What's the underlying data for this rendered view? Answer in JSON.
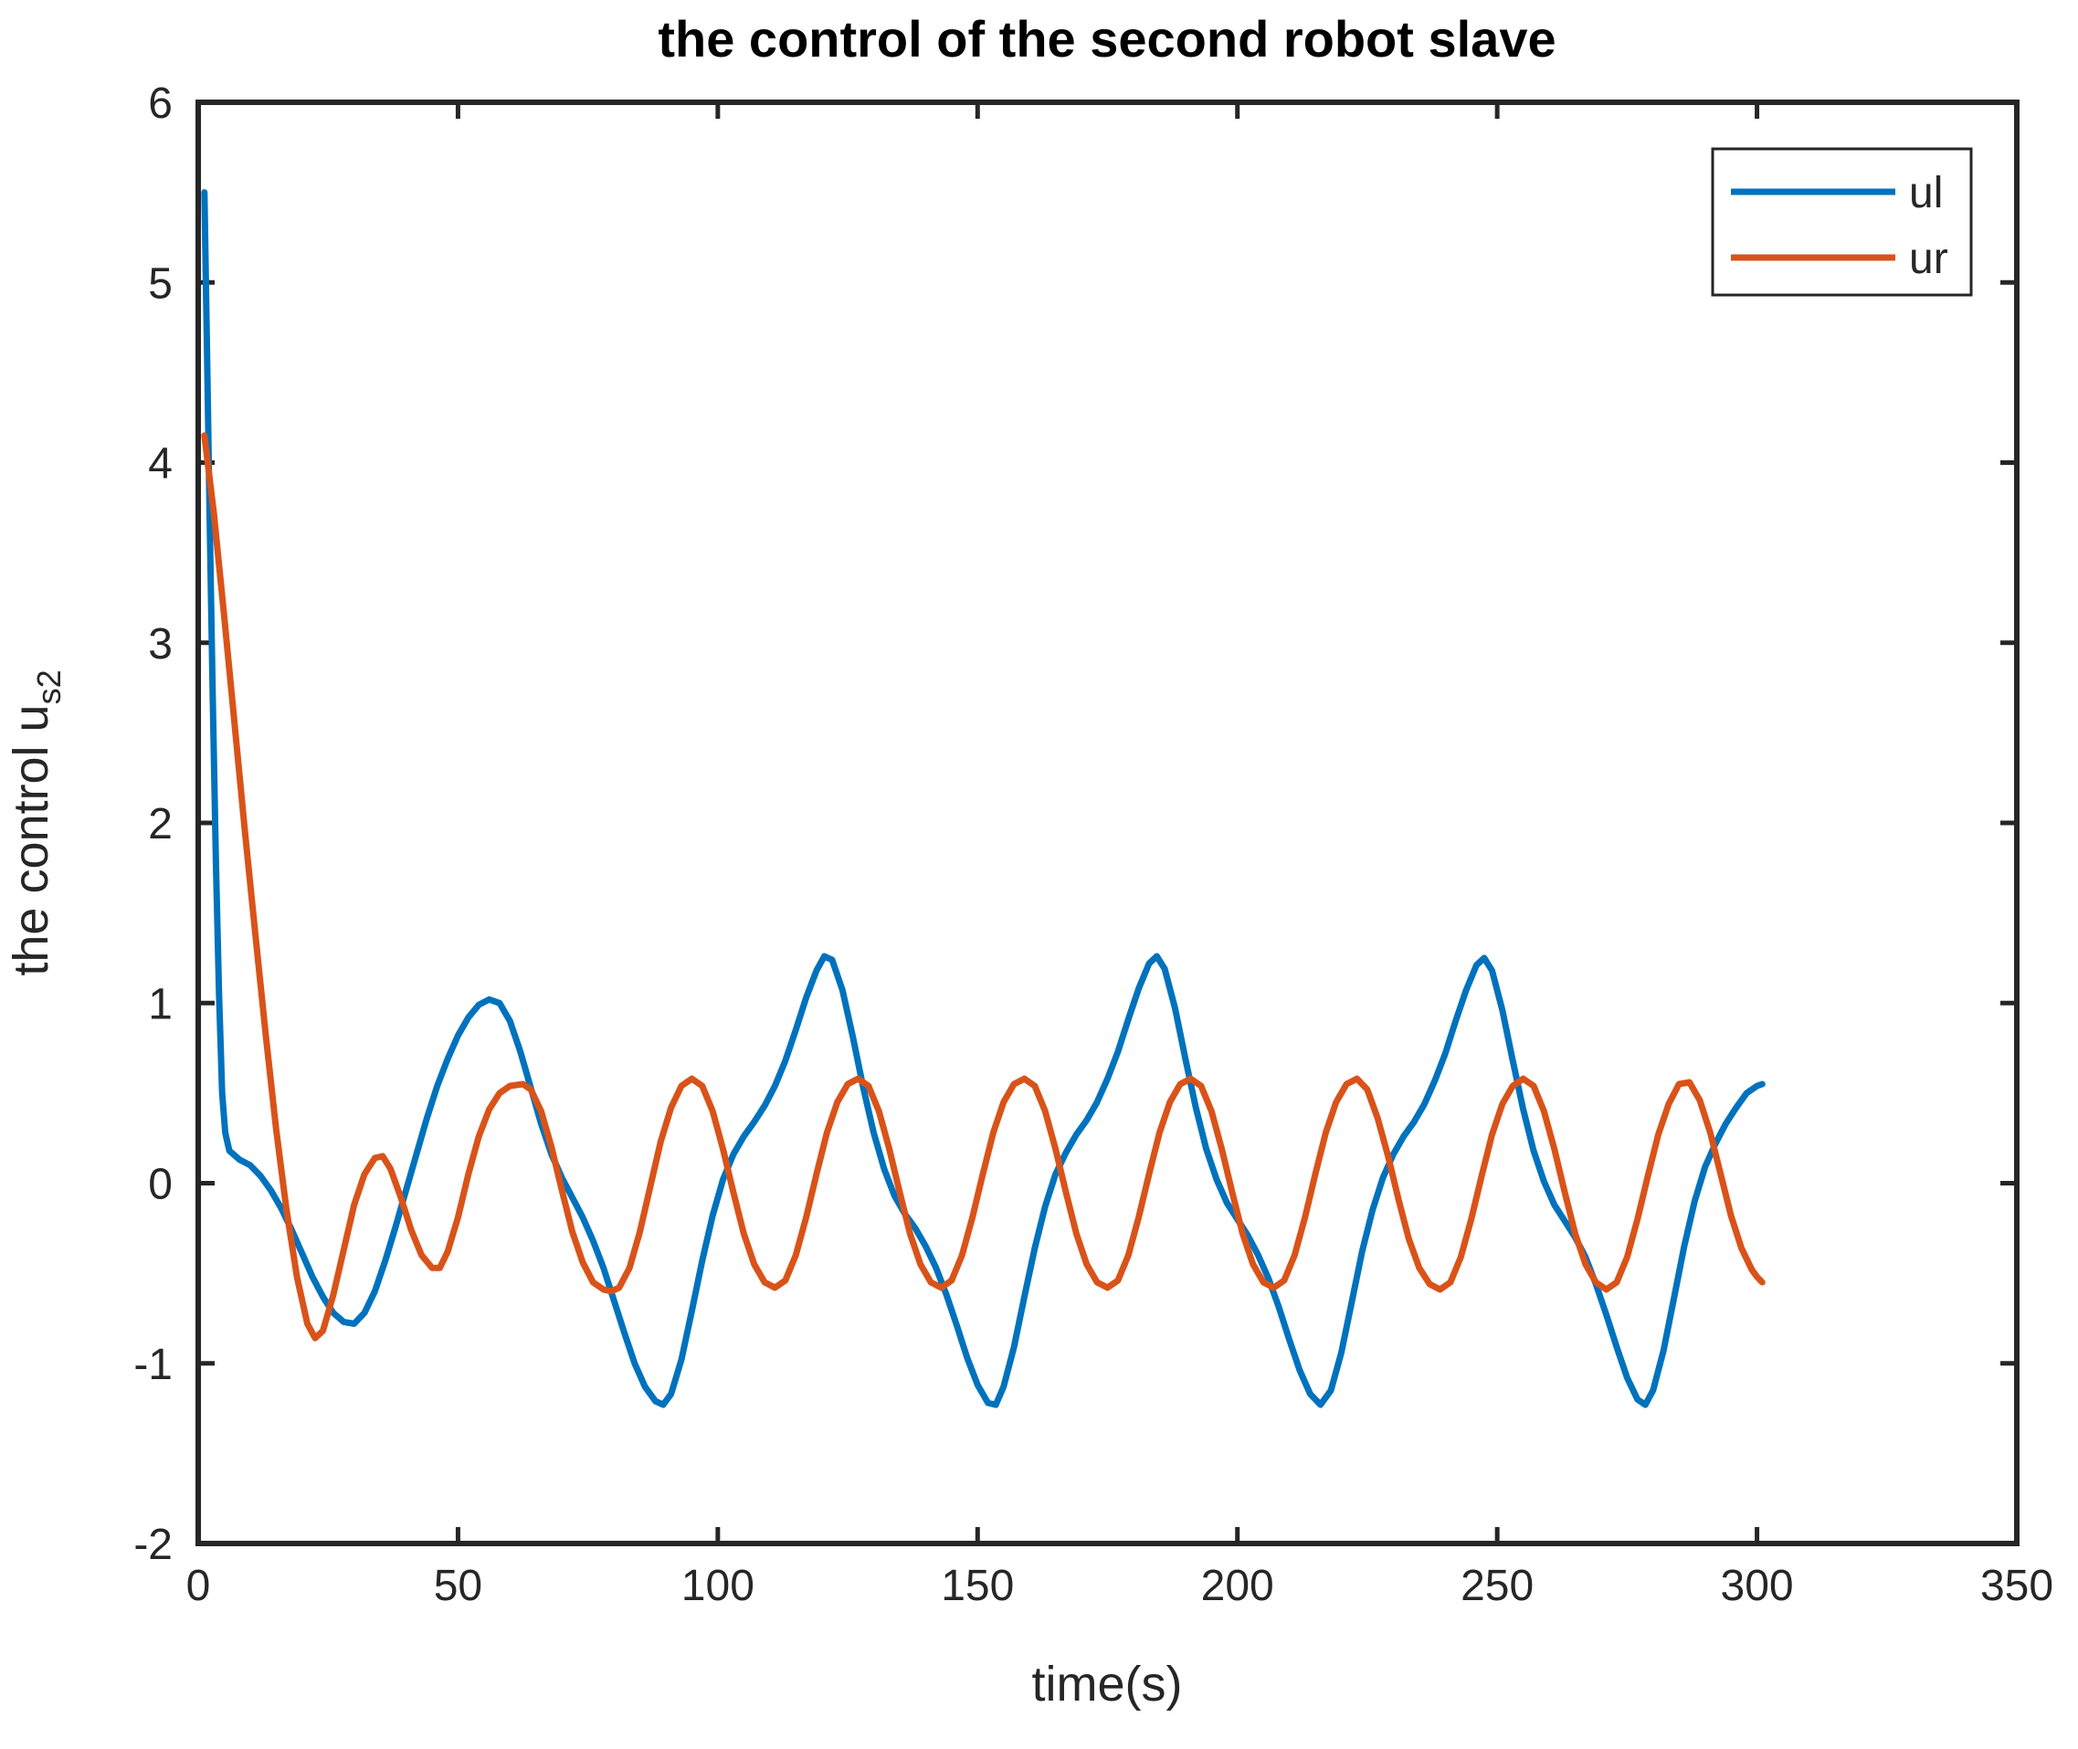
{
  "chart_data": {
    "type": "line",
    "title": "the control of the second robot slave",
    "xlabel": "time(s)",
    "ylabel": "the control u_s2",
    "ylabel_base": "the control u",
    "ylabel_sub": "s2",
    "xlim": [
      0,
      350
    ],
    "ylim": [
      -2,
      6
    ],
    "xticks": [
      0,
      50,
      100,
      150,
      200,
      250,
      300,
      350
    ],
    "yticks": [
      -2,
      -1,
      0,
      1,
      2,
      3,
      4,
      5,
      6
    ],
    "grid": false,
    "legend_position": "top-right",
    "axis_color": "#262626",
    "background_color": "#ffffff",
    "series": [
      {
        "name": "ul",
        "color": "#0072BD",
        "points": [
          [
            1.2,
            5.5
          ],
          [
            1.7,
            4.6
          ],
          [
            2.2,
            3.7
          ],
          [
            2.8,
            2.7
          ],
          [
            3.4,
            1.8
          ],
          [
            4,
            1.05
          ],
          [
            4.6,
            0.5
          ],
          [
            5.2,
            0.28
          ],
          [
            6,
            0.18
          ],
          [
            8,
            0.13
          ],
          [
            10,
            0.1
          ],
          [
            12,
            0.04
          ],
          [
            14,
            -0.04
          ],
          [
            16,
            -0.14
          ],
          [
            18,
            -0.26
          ],
          [
            20,
            -0.39
          ],
          [
            22,
            -0.52
          ],
          [
            24,
            -0.63
          ],
          [
            26,
            -0.72
          ],
          [
            28,
            -0.77
          ],
          [
            30,
            -0.78
          ],
          [
            32,
            -0.72
          ],
          [
            34,
            -0.6
          ],
          [
            36,
            -0.43
          ],
          [
            38,
            -0.24
          ],
          [
            40,
            -0.04
          ],
          [
            42,
            0.16
          ],
          [
            44,
            0.36
          ],
          [
            46,
            0.54
          ],
          [
            48,
            0.69
          ],
          [
            50,
            0.82
          ],
          [
            52,
            0.92
          ],
          [
            54,
            0.99
          ],
          [
            56,
            1.02
          ],
          [
            58,
            1.0
          ],
          [
            60,
            0.9
          ],
          [
            62,
            0.73
          ],
          [
            64,
            0.53
          ],
          [
            66,
            0.33
          ],
          [
            68,
            0.16
          ],
          [
            70,
            0.03
          ],
          [
            72,
            -0.08
          ],
          [
            74,
            -0.19
          ],
          [
            76,
            -0.32
          ],
          [
            78,
            -0.47
          ],
          [
            80,
            -0.65
          ],
          [
            82,
            -0.83
          ],
          [
            84,
            -1.0
          ],
          [
            86,
            -1.13
          ],
          [
            88,
            -1.21
          ],
          [
            89.5,
            -1.23
          ],
          [
            91,
            -1.17
          ],
          [
            93,
            -0.98
          ],
          [
            95,
            -0.71
          ],
          [
            97,
            -0.43
          ],
          [
            99,
            -0.18
          ],
          [
            101,
            0.02
          ],
          [
            103,
            0.16
          ],
          [
            105,
            0.26
          ],
          [
            107,
            0.34
          ],
          [
            109,
            0.43
          ],
          [
            111,
            0.54
          ],
          [
            113,
            0.68
          ],
          [
            115,
            0.85
          ],
          [
            117,
            1.03
          ],
          [
            119,
            1.18
          ],
          [
            120.5,
            1.26
          ],
          [
            122,
            1.24
          ],
          [
            124,
            1.07
          ],
          [
            126,
            0.81
          ],
          [
            128,
            0.53
          ],
          [
            130,
            0.28
          ],
          [
            132,
            0.08
          ],
          [
            134,
            -0.07
          ],
          [
            136,
            -0.17
          ],
          [
            138,
            -0.25
          ],
          [
            140,
            -0.35
          ],
          [
            142,
            -0.47
          ],
          [
            144,
            -0.62
          ],
          [
            146,
            -0.79
          ],
          [
            148,
            -0.97
          ],
          [
            150,
            -1.12
          ],
          [
            152,
            -1.22
          ],
          [
            153.5,
            -1.23
          ],
          [
            155,
            -1.13
          ],
          [
            157,
            -0.91
          ],
          [
            159,
            -0.63
          ],
          [
            161,
            -0.36
          ],
          [
            163,
            -0.13
          ],
          [
            165,
            0.05
          ],
          [
            167,
            0.17
          ],
          [
            169,
            0.27
          ],
          [
            171,
            0.35
          ],
          [
            173,
            0.45
          ],
          [
            175,
            0.58
          ],
          [
            177,
            0.73
          ],
          [
            179,
            0.91
          ],
          [
            181,
            1.08
          ],
          [
            183,
            1.22
          ],
          [
            184.5,
            1.26
          ],
          [
            186,
            1.19
          ],
          [
            188,
            0.97
          ],
          [
            190,
            0.69
          ],
          [
            192,
            0.42
          ],
          [
            194,
            0.19
          ],
          [
            196,
            0.02
          ],
          [
            198,
            -0.11
          ],
          [
            200,
            -0.2
          ],
          [
            202,
            -0.29
          ],
          [
            204,
            -0.4
          ],
          [
            206,
            -0.53
          ],
          [
            208,
            -0.69
          ],
          [
            210,
            -0.87
          ],
          [
            212,
            -1.04
          ],
          [
            214,
            -1.17
          ],
          [
            216,
            -1.23
          ],
          [
            218,
            -1.15
          ],
          [
            220,
            -0.94
          ],
          [
            222,
            -0.66
          ],
          [
            224,
            -0.38
          ],
          [
            226,
            -0.15
          ],
          [
            228,
            0.03
          ],
          [
            230,
            0.16
          ],
          [
            232,
            0.26
          ],
          [
            234,
            0.34
          ],
          [
            236,
            0.44
          ],
          [
            238,
            0.57
          ],
          [
            240,
            0.72
          ],
          [
            242,
            0.9
          ],
          [
            244,
            1.07
          ],
          [
            246,
            1.21
          ],
          [
            247.5,
            1.25
          ],
          [
            249,
            1.18
          ],
          [
            251,
            0.96
          ],
          [
            253,
            0.68
          ],
          [
            255,
            0.41
          ],
          [
            257,
            0.18
          ],
          [
            259,
            0.01
          ],
          [
            261,
            -0.12
          ],
          [
            263,
            -0.21
          ],
          [
            265,
            -0.3
          ],
          [
            267,
            -0.41
          ],
          [
            269,
            -0.56
          ],
          [
            271,
            -0.73
          ],
          [
            273,
            -0.91
          ],
          [
            275,
            -1.08
          ],
          [
            277,
            -1.2
          ],
          [
            278.5,
            -1.23
          ],
          [
            280,
            -1.15
          ],
          [
            282,
            -0.93
          ],
          [
            284,
            -0.64
          ],
          [
            286,
            -0.35
          ],
          [
            288,
            -0.1
          ],
          [
            290,
            0.09
          ],
          [
            292,
            0.22
          ],
          [
            294,
            0.33
          ],
          [
            296,
            0.42
          ],
          [
            298,
            0.5
          ],
          [
            300,
            0.54
          ],
          [
            301,
            0.55
          ]
        ]
      },
      {
        "name": "ur",
        "color": "#D95319",
        "points": [
          [
            1.2,
            4.15
          ],
          [
            3,
            3.72
          ],
          [
            5,
            3.15
          ],
          [
            7,
            2.55
          ],
          [
            9,
            1.95
          ],
          [
            11,
            1.38
          ],
          [
            13,
            0.82
          ],
          [
            15,
            0.3
          ],
          [
            17,
            -0.15
          ],
          [
            19,
            -0.52
          ],
          [
            21,
            -0.78
          ],
          [
            22.5,
            -0.86
          ],
          [
            24,
            -0.82
          ],
          [
            26,
            -0.62
          ],
          [
            28,
            -0.37
          ],
          [
            30,
            -0.12
          ],
          [
            32,
            0.05
          ],
          [
            34,
            0.14
          ],
          [
            35.5,
            0.15
          ],
          [
            37,
            0.08
          ],
          [
            39,
            -0.08
          ],
          [
            41,
            -0.26
          ],
          [
            43,
            -0.4
          ],
          [
            45,
            -0.47
          ],
          [
            46.5,
            -0.47
          ],
          [
            48,
            -0.38
          ],
          [
            50,
            -0.19
          ],
          [
            52,
            0.05
          ],
          [
            54,
            0.26
          ],
          [
            56,
            0.41
          ],
          [
            58,
            0.5
          ],
          [
            60,
            0.54
          ],
          [
            62.5,
            0.55
          ],
          [
            64,
            0.52
          ],
          [
            66,
            0.4
          ],
          [
            68,
            0.2
          ],
          [
            70,
            -0.04
          ],
          [
            72,
            -0.27
          ],
          [
            74,
            -0.44
          ],
          [
            76,
            -0.55
          ],
          [
            78,
            -0.59
          ],
          [
            79.5,
            -0.6
          ],
          [
            81,
            -0.58
          ],
          [
            83,
            -0.47
          ],
          [
            85,
            -0.27
          ],
          [
            87,
            -0.02
          ],
          [
            89,
            0.23
          ],
          [
            91,
            0.42
          ],
          [
            93,
            0.54
          ],
          [
            95,
            0.58
          ],
          [
            97,
            0.54
          ],
          [
            99,
            0.4
          ],
          [
            101,
            0.19
          ],
          [
            103,
            -0.05
          ],
          [
            105,
            -0.28
          ],
          [
            107,
            -0.45
          ],
          [
            109,
            -0.55
          ],
          [
            111,
            -0.58
          ],
          [
            113,
            -0.54
          ],
          [
            115,
            -0.4
          ],
          [
            117,
            -0.19
          ],
          [
            119,
            0.05
          ],
          [
            121,
            0.28
          ],
          [
            123,
            0.45
          ],
          [
            125,
            0.55
          ],
          [
            127,
            0.58
          ],
          [
            129,
            0.54
          ],
          [
            131,
            0.4
          ],
          [
            133,
            0.19
          ],
          [
            135,
            -0.05
          ],
          [
            137,
            -0.28
          ],
          [
            139,
            -0.45
          ],
          [
            141,
            -0.55
          ],
          [
            143,
            -0.58
          ],
          [
            145,
            -0.54
          ],
          [
            147,
            -0.4
          ],
          [
            149,
            -0.19
          ],
          [
            151,
            0.05
          ],
          [
            153,
            0.28
          ],
          [
            155,
            0.45
          ],
          [
            157,
            0.55
          ],
          [
            159,
            0.58
          ],
          [
            161,
            0.54
          ],
          [
            163,
            0.4
          ],
          [
            165,
            0.19
          ],
          [
            167,
            -0.05
          ],
          [
            169,
            -0.28
          ],
          [
            171,
            -0.45
          ],
          [
            173,
            -0.55
          ],
          [
            175,
            -0.58
          ],
          [
            177,
            -0.54
          ],
          [
            179,
            -0.4
          ],
          [
            181,
            -0.19
          ],
          [
            183,
            0.05
          ],
          [
            185,
            0.28
          ],
          [
            187,
            0.45
          ],
          [
            189,
            0.55
          ],
          [
            191,
            0.58
          ],
          [
            193,
            0.54
          ],
          [
            195,
            0.4
          ],
          [
            197,
            0.19
          ],
          [
            199,
            -0.05
          ],
          [
            201,
            -0.28
          ],
          [
            203,
            -0.45
          ],
          [
            205,
            -0.55
          ],
          [
            207,
            -0.58
          ],
          [
            209,
            -0.54
          ],
          [
            211,
            -0.4
          ],
          [
            213,
            -0.19
          ],
          [
            215,
            0.05
          ],
          [
            217,
            0.28
          ],
          [
            219,
            0.45
          ],
          [
            221,
            0.55
          ],
          [
            223,
            0.58
          ],
          [
            225,
            0.52
          ],
          [
            227,
            0.36
          ],
          [
            229,
            0.15
          ],
          [
            231,
            -0.09
          ],
          [
            233,
            -0.31
          ],
          [
            235,
            -0.47
          ],
          [
            237,
            -0.56
          ],
          [
            239,
            -0.59
          ],
          [
            241,
            -0.55
          ],
          [
            243,
            -0.41
          ],
          [
            245,
            -0.2
          ],
          [
            247,
            0.04
          ],
          [
            249,
            0.27
          ],
          [
            251,
            0.44
          ],
          [
            253,
            0.54
          ],
          [
            255,
            0.58
          ],
          [
            257,
            0.54
          ],
          [
            259,
            0.4
          ],
          [
            261,
            0.19
          ],
          [
            263,
            -0.05
          ],
          [
            265,
            -0.28
          ],
          [
            267,
            -0.45
          ],
          [
            269,
            -0.55
          ],
          [
            271,
            -0.59
          ],
          [
            273,
            -0.55
          ],
          [
            275,
            -0.41
          ],
          [
            277,
            -0.2
          ],
          [
            279,
            0.04
          ],
          [
            281,
            0.27
          ],
          [
            283,
            0.44
          ],
          [
            285,
            0.55
          ],
          [
            287,
            0.56
          ],
          [
            289,
            0.46
          ],
          [
            291,
            0.28
          ],
          [
            293,
            0.05
          ],
          [
            295,
            -0.18
          ],
          [
            297,
            -0.36
          ],
          [
            299,
            -0.48
          ],
          [
            300,
            -0.52
          ],
          [
            301,
            -0.55
          ]
        ]
      }
    ]
  }
}
